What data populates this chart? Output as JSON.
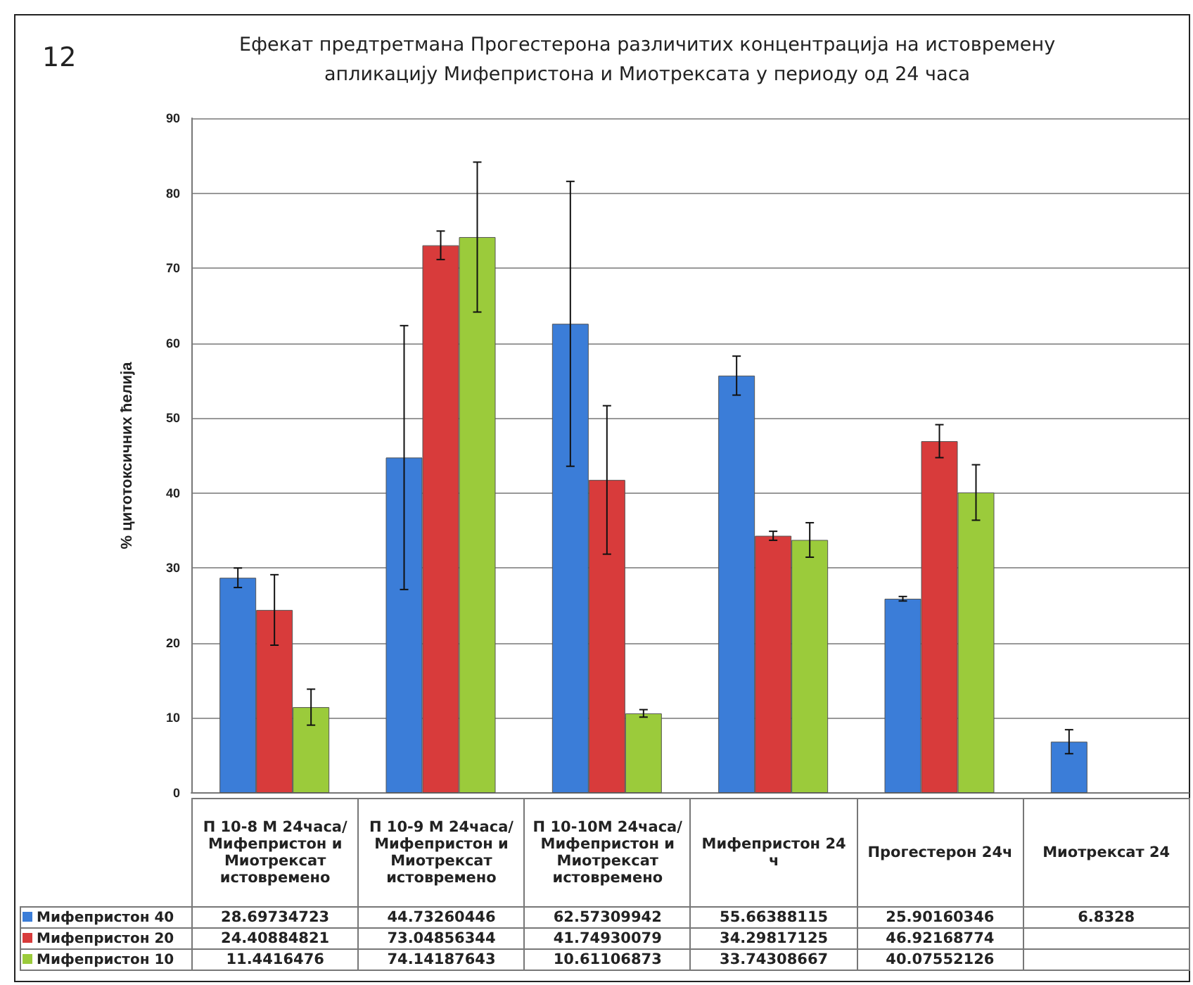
{
  "chart_data": {
    "type": "bar",
    "title": "Ефекат предтретмана Прогестерона различитих концентрација на истовремену апликацију Мифепристона и Миотрексата у периоду од 24 часа",
    "ylabel": "% цитотоксичних ћелија",
    "annotations": [
      "12"
    ],
    "categories": [
      "П 10-8 М 24часа/Мифепристон и Миотрексат истовремено",
      "П 10-9 М 24часа/Мифепристон и Миотрексат истовремено",
      "П 10-10М 24часа/Мифепристон и Миотрексат истовремено",
      "Мифепристон 24 ч",
      "Прогестерон 24ч",
      "Миотрексат 24"
    ],
    "series": [
      {
        "name": "Мифепристон 40",
        "color": "#3b7dd8",
        "values": [
          28.69734723,
          44.73260446,
          62.57309942,
          55.66388115,
          25.90160346,
          6.8328
        ],
        "errors": [
          1.3,
          17.6,
          19,
          2.6,
          0.3,
          1.6
        ]
      },
      {
        "name": "Мифепристон 20",
        "color": "#d83b3b",
        "values": [
          24.40884821,
          73.04856344,
          41.74930079,
          34.29817125,
          46.92168774,
          null
        ],
        "errors": [
          4.7,
          1.9,
          9.9,
          0.6,
          2.2,
          null
        ]
      },
      {
        "name": "Мифепристон 10",
        "color": "#9bcb3b",
        "values": [
          11.4416476,
          74.14187643,
          10.61106873,
          33.74308667,
          40.07552126,
          null
        ],
        "errors": [
          2.4,
          10,
          0.5,
          2.3,
          3.7,
          null
        ]
      }
    ],
    "ylim": [
      0,
      90
    ],
    "yticks": [
      0,
      10,
      20,
      30,
      40,
      50,
      60,
      70,
      80,
      90
    ],
    "grid": "y",
    "legend": "bottom left",
    "data_labels": true
  }
}
